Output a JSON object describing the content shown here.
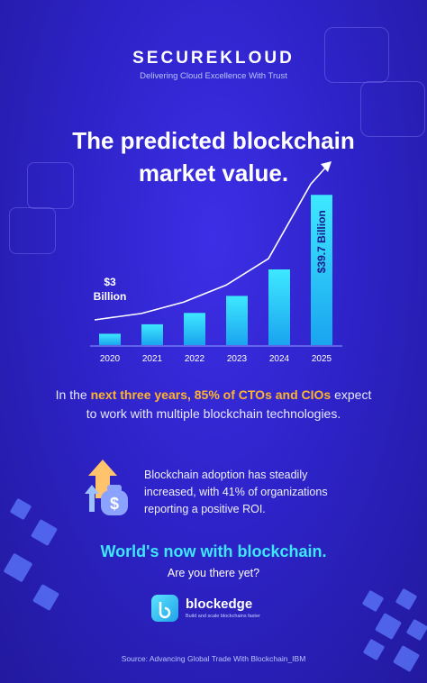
{
  "brand": {
    "name": "SECUREKLOUD",
    "tagline": "Delivering Cloud Excellence With Trust"
  },
  "headline": {
    "line1": "The predicted blockchain",
    "line2": "market value."
  },
  "chart_data": {
    "type": "bar",
    "categories": [
      "2020",
      "2021",
      "2022",
      "2023",
      "2024",
      "2025"
    ],
    "values": [
      3,
      5.5,
      8.5,
      13,
      20,
      39.7
    ],
    "ylim": [
      0,
      40
    ],
    "title": "",
    "xlabel": "",
    "ylabel": "",
    "annotations": {
      "first": [
        "$3",
        "Billion"
      ],
      "last": "$39.7 Billion"
    },
    "trend_arrow": true,
    "bar_color": "#27d0f5"
  },
  "paragraph": {
    "p1": "In the ",
    "h1": "next three years, 85% of CTOs and CIOs",
    "p2": " expect to work with multiple blockchain technologies."
  },
  "adoption": {
    "text": "Blockchain adoption has steadily increased, with 41% of organizations reporting a positive ROI.",
    "icon": "money-bag-arrow-icon"
  },
  "cta": {
    "main": "World's now with blockchain.",
    "sub": "Are you there yet?"
  },
  "logo": {
    "name": "blockedge",
    "tagline": "Build and scale blockchains faster",
    "icon": "blockedge-logo-icon"
  },
  "source": "Source: Advancing Global Trade With Blockchain_IBM",
  "colors": {
    "accent": "#3fe6ff",
    "highlight": "#ffb42e",
    "background": "#2e23c9"
  }
}
